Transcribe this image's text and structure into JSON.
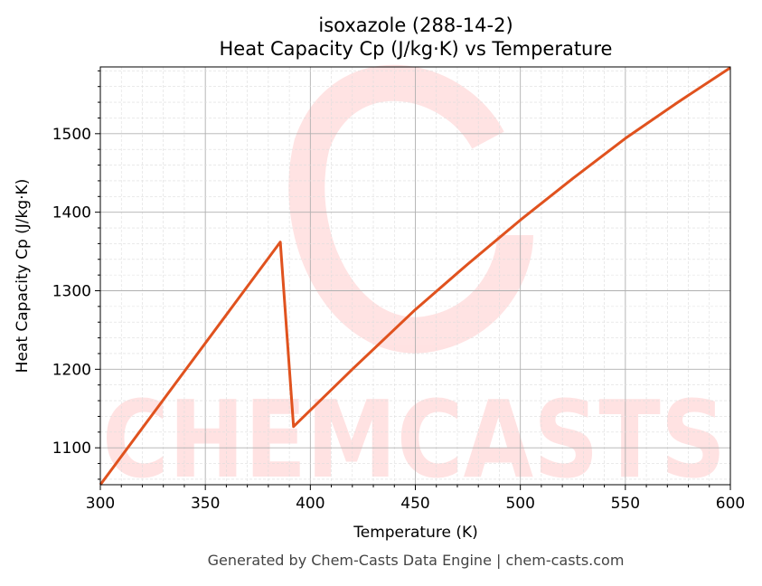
{
  "chart_data": {
    "type": "line",
    "title_line1": "isoxazole (288-14-2)",
    "title_line2": "Heat Capacity Cp (J/kg·K) vs Temperature",
    "xlabel": "Temperature (K)",
    "ylabel": "Heat Capacity Cp (J/kg·K)",
    "xlim": [
      300,
      600
    ],
    "ylim": [
      1053,
      1585
    ],
    "xticks": [
      300,
      350,
      400,
      450,
      500,
      550,
      600
    ],
    "yticks": [
      1100,
      1200,
      1300,
      1400,
      1500
    ],
    "grid": true,
    "line_color": "#e0521e",
    "watermark": "CHEMCASTS",
    "series": [
      {
        "name": "Cp",
        "x": [
          300,
          385.7,
          392,
          420,
          450,
          475,
          500,
          525,
          550,
          575,
          600
        ],
        "y": [
          1053,
          1362,
          1127,
          1200,
          1276,
          1334,
          1390,
          1443,
          1494,
          1540,
          1584
        ]
      }
    ],
    "footer": "Generated by Chem-Casts Data Engine | chem-casts.com"
  }
}
